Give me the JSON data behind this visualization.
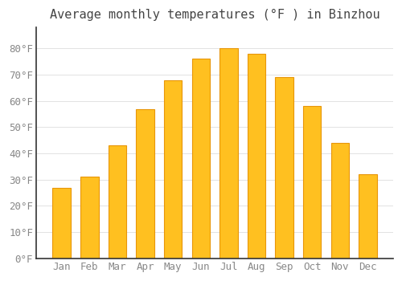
{
  "title": "Average monthly temperatures (°F ) in Binzhou",
  "months": [
    "Jan",
    "Feb",
    "Mar",
    "Apr",
    "May",
    "Jun",
    "Jul",
    "Aug",
    "Sep",
    "Oct",
    "Nov",
    "Dec"
  ],
  "values": [
    27,
    31,
    43,
    57,
    68,
    76,
    80,
    78,
    69,
    58,
    44,
    32
  ],
  "bar_color": "#FFC020",
  "bar_edge_color": "#E8960A",
  "background_color": "#FFFFFF",
  "plot_bg_color": "#FFFFFF",
  "grid_color": "#DDDDDD",
  "axis_color": "#333333",
  "tick_color": "#888888",
  "title_color": "#444444",
  "ylim": [
    0,
    88
  ],
  "yticks": [
    0,
    10,
    20,
    30,
    40,
    50,
    60,
    70,
    80
  ],
  "title_fontsize": 11,
  "tick_fontsize": 9,
  "figsize": [
    5.0,
    3.5
  ],
  "dpi": 100
}
